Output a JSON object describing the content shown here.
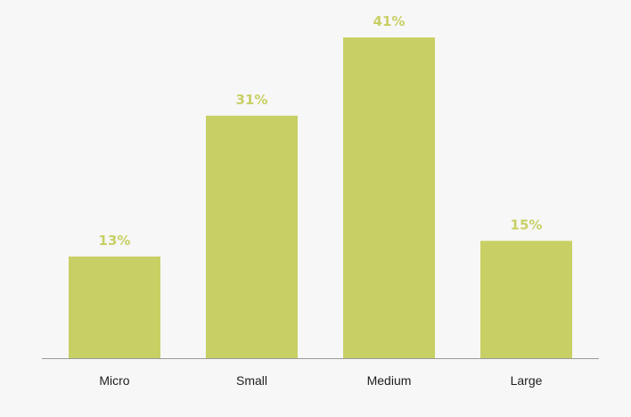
{
  "chart_data": {
    "type": "bar",
    "categories": [
      "Micro",
      "Small",
      "Medium",
      "Large"
    ],
    "values": [
      13,
      31,
      41,
      15
    ],
    "value_labels": [
      "13%",
      "31%",
      "41%",
      "15%"
    ],
    "unit": "%",
    "title": "",
    "xlabel": "",
    "ylabel": "",
    "ylim": [
      0,
      41
    ],
    "grid": false,
    "legend": "none"
  },
  "colors": {
    "bar": "#c8d065",
    "value_label": "#c8d065",
    "axis": "#9a9a9a",
    "background": "#f7f7f7"
  }
}
